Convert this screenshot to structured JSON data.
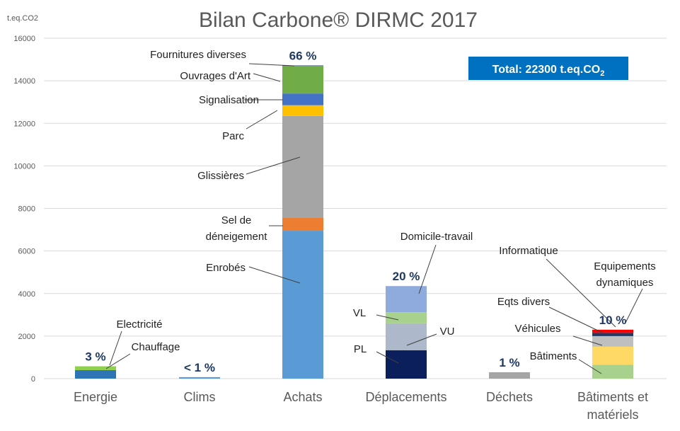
{
  "chart_data": {
    "type": "bar",
    "stacked": true,
    "title": "Bilan Carbone® DIRMC 2017",
    "ylabel": "t.eq.CO2",
    "ylim": [
      0,
      16000
    ],
    "yticks": [
      0,
      2000,
      4000,
      6000,
      8000,
      10000,
      12000,
      14000,
      16000
    ],
    "grid": true,
    "total_box": {
      "text": "Total: 22300 t.eq.CO",
      "subscript": "2",
      "fill": "#0070C0",
      "text_color": "#ffffff"
    },
    "categories": [
      {
        "label": [
          "Energie"
        ],
        "percent": "3 %",
        "segments": [
          {
            "name": "Chauffage",
            "value": 400,
            "color": "#2E75B6"
          },
          {
            "name": "Electricité",
            "value": 180,
            "color": "#8FD14F"
          }
        ]
      },
      {
        "label": [
          "Clims"
        ],
        "percent": "< 1 %",
        "segments": [
          {
            "name": "",
            "value": 70,
            "color": "#5B9BD5"
          }
        ]
      },
      {
        "label": [
          "Achats"
        ],
        "percent": "66 %",
        "segments": [
          {
            "name": "Enrobés",
            "value": 6950,
            "color": "#5B9BD5"
          },
          {
            "name": "Sel de déneigement",
            "value": 600,
            "color": "#ED7D31"
          },
          {
            "name": "Glissières",
            "value": 4800,
            "color": "#A5A5A5"
          },
          {
            "name": "Parc",
            "value": 500,
            "color": "#FFC000"
          },
          {
            "name": "Signalisation",
            "value": 550,
            "color": "#4472C4"
          },
          {
            "name": "Ouvrages d'Art",
            "value": 1300,
            "color": "#70AD47"
          },
          {
            "name": "Fournitures diverses",
            "value": 20,
            "color": "#264478"
          }
        ]
      },
      {
        "label": [
          "Déplacements"
        ],
        "percent": "20 %",
        "segments": [
          {
            "name": "PL",
            "value": 1330,
            "color": "#0A1F5C"
          },
          {
            "name": "VU",
            "value": 1270,
            "color": "#ADB9CA"
          },
          {
            "name": "VL",
            "value": 520,
            "color": "#A9D18E"
          },
          {
            "name": "Domicile-travail",
            "value": 1230,
            "color": "#8FAADC"
          }
        ]
      },
      {
        "label": [
          "Déchets"
        ],
        "percent": "1 %",
        "segments": [
          {
            "name": "",
            "value": 300,
            "color": "#A5A5A5"
          }
        ]
      },
      {
        "label": [
          "Bâtiments et",
          "matériels"
        ],
        "percent": "10 %",
        "segments": [
          {
            "name": "Bâtiments",
            "value": 650,
            "color": "#A9D18E"
          },
          {
            "name": "Véhicules",
            "value": 850,
            "color": "#FFD966"
          },
          {
            "name": "Eqts divers",
            "value": 500,
            "color": "#BFBFBF"
          },
          {
            "name": "Informatique",
            "value": 150,
            "color": "#1F3864"
          },
          {
            "name": "Equipements dynamiques",
            "value": 150,
            "color": "#FF0000"
          }
        ]
      }
    ],
    "callouts": [
      {
        "lines": [
          "Fournitures diverses"
        ],
        "cat": 2,
        "seg": 6
      },
      {
        "lines": [
          "Ouvrages d'Art"
        ],
        "cat": 2,
        "seg": 5
      },
      {
        "lines": [
          "Signalisation"
        ],
        "cat": 2,
        "seg": 4
      },
      {
        "lines": [
          "Parc"
        ],
        "cat": 2,
        "seg": 3
      },
      {
        "lines": [
          "Glissières"
        ],
        "cat": 2,
        "seg": 2
      },
      {
        "lines": [
          "Sel de",
          "déneigement"
        ],
        "cat": 2,
        "seg": 1
      },
      {
        "lines": [
          "Enrobés"
        ],
        "cat": 2,
        "seg": 0
      },
      {
        "lines": [
          "Electricité"
        ],
        "cat": 0,
        "seg": 1
      },
      {
        "lines": [
          "Chauffage"
        ],
        "cat": 0,
        "seg": 0
      },
      {
        "lines": [
          "Domicile-travail"
        ],
        "cat": 3,
        "seg": 3
      },
      {
        "lines": [
          "VL"
        ],
        "cat": 3,
        "seg": 2
      },
      {
        "lines": [
          "VU"
        ],
        "cat": 3,
        "seg": 1
      },
      {
        "lines": [
          "PL"
        ],
        "cat": 3,
        "seg": 0
      },
      {
        "lines": [
          "Informatique"
        ],
        "cat": 5,
        "seg": 3
      },
      {
        "lines": [
          "Equipements",
          "dynamiques"
        ],
        "cat": 5,
        "seg": 4
      },
      {
        "lines": [
          "Eqts divers"
        ],
        "cat": 5,
        "seg": 2
      },
      {
        "lines": [
          "Véhicules"
        ],
        "cat": 5,
        "seg": 1
      },
      {
        "lines": [
          "Bâtiments"
        ],
        "cat": 5,
        "seg": 0
      }
    ],
    "colors": {
      "grid": "#D9D9D9",
      "tick_text": "#595959",
      "title_text": "#595959",
      "percent_text": "#1F3864",
      "label_text": "#222222"
    }
  }
}
